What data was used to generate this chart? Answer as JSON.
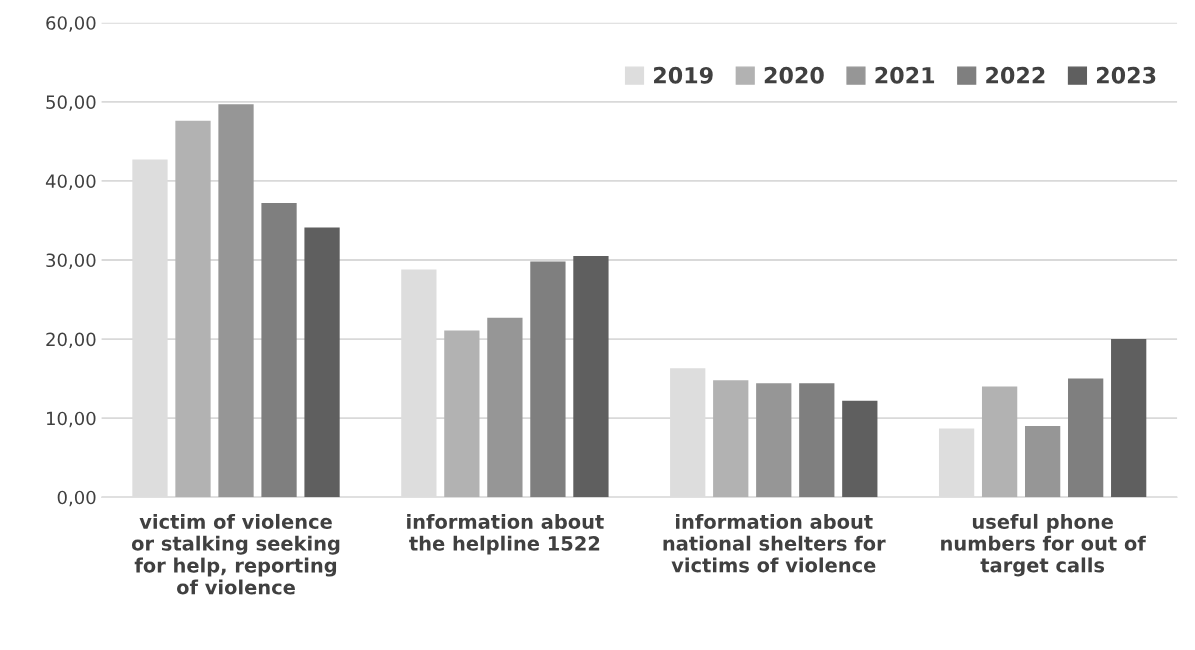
{
  "chart_data": {
    "type": "bar",
    "categories": [
      "victim of violence\nor stalking seeking\nfor help, reporting\nof violence",
      "information about\nthe helpline 1522",
      "information about\nnational shelters for\nvictims of violence",
      "useful phone\nnumbers for out of\ntarget calls"
    ],
    "series": [
      {
        "name": "2019",
        "color": "#dddddd",
        "values": [
          42.7,
          28.8,
          16.3,
          8.7
        ]
      },
      {
        "name": "2020",
        "color": "#b2b2b2",
        "values": [
          47.6,
          21.1,
          14.8,
          14.0
        ]
      },
      {
        "name": "2021",
        "color": "#969696",
        "values": [
          49.7,
          22.7,
          14.4,
          9.0
        ]
      },
      {
        "name": "2022",
        "color": "#7f7f7f",
        "values": [
          37.2,
          29.8,
          14.4,
          15.0
        ]
      },
      {
        "name": "2023",
        "color": "#5f5f5f",
        "values": [
          34.1,
          30.5,
          12.2,
          20.0
        ]
      }
    ],
    "ylim": [
      0,
      60
    ],
    "yticks": [
      {
        "value": 0,
        "label": "0,00"
      },
      {
        "value": 10,
        "label": "10,00"
      },
      {
        "value": 20,
        "label": "20,00"
      },
      {
        "value": 30,
        "label": "30,00"
      },
      {
        "value": 40,
        "label": "40,00"
      },
      {
        "value": 50,
        "label": "50,00"
      },
      {
        "value": 60,
        "label": "60,00"
      }
    ],
    "grid": "y",
    "legend": "top right"
  }
}
